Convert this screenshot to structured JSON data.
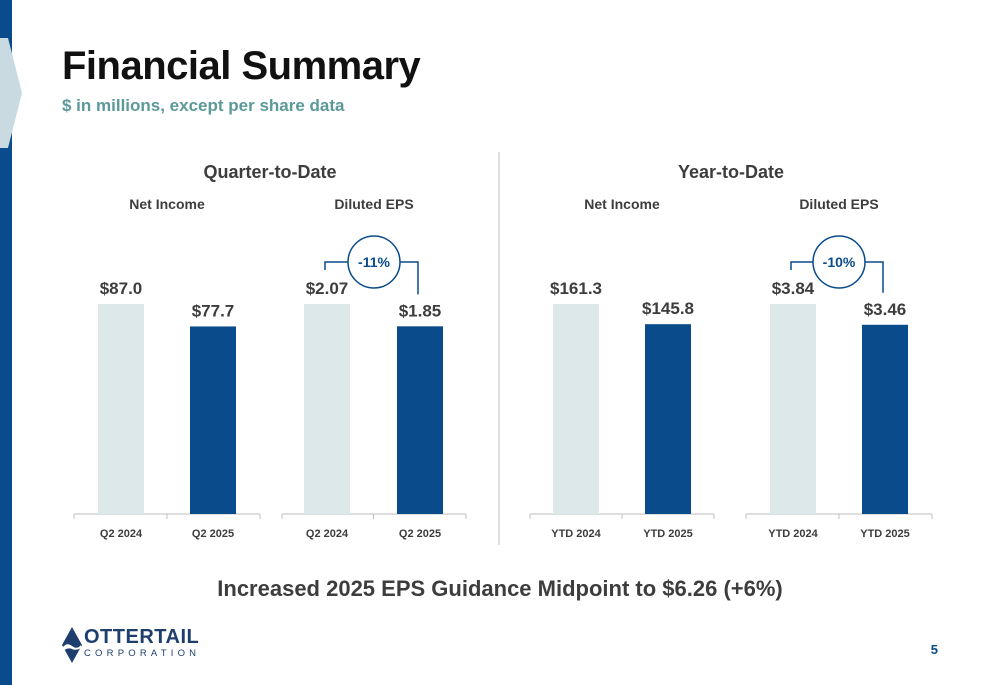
{
  "title": "Financial Summary",
  "subtitle": "$ in millions, except per share data",
  "bottom_note": "Increased 2025 EPS Guidance Midpoint to $6.26 (+6%)",
  "logo": {
    "name": "OTTERTAIL",
    "sub": "CORPORATION"
  },
  "page_number": "5",
  "colors": {
    "prior": "#dde8ea",
    "current": "#0a4b8c",
    "accent": "#5b9a99",
    "axis": "#bfbfbf"
  },
  "chart_data": [
    {
      "type": "bar",
      "group": "Quarter-to-Date",
      "title": "Net Income",
      "categories": [
        "Q2 2024",
        "Q2 2025"
      ],
      "values": [
        87.0,
        77.7
      ],
      "labels": [
        "$87.0",
        "$77.7"
      ]
    },
    {
      "type": "bar",
      "group": "Quarter-to-Date",
      "title": "Diluted EPS",
      "categories": [
        "Q2 2024",
        "Q2 2025"
      ],
      "values": [
        2.07,
        1.85
      ],
      "labels": [
        "$2.07",
        "$1.85"
      ],
      "change_label": "-11%"
    },
    {
      "type": "bar",
      "group": "Year-to-Date",
      "title": "Net Income",
      "categories": [
        "YTD 2024",
        "YTD 2025"
      ],
      "values": [
        161.3,
        145.8
      ],
      "labels": [
        "$161.3",
        "$145.8"
      ]
    },
    {
      "type": "bar",
      "group": "Year-to-Date",
      "title": "Diluted EPS",
      "categories": [
        "YTD 2024",
        "YTD 2025"
      ],
      "values": [
        3.84,
        3.46
      ],
      "labels": [
        "$3.84",
        "$3.46"
      ],
      "change_label": "-10%"
    }
  ]
}
